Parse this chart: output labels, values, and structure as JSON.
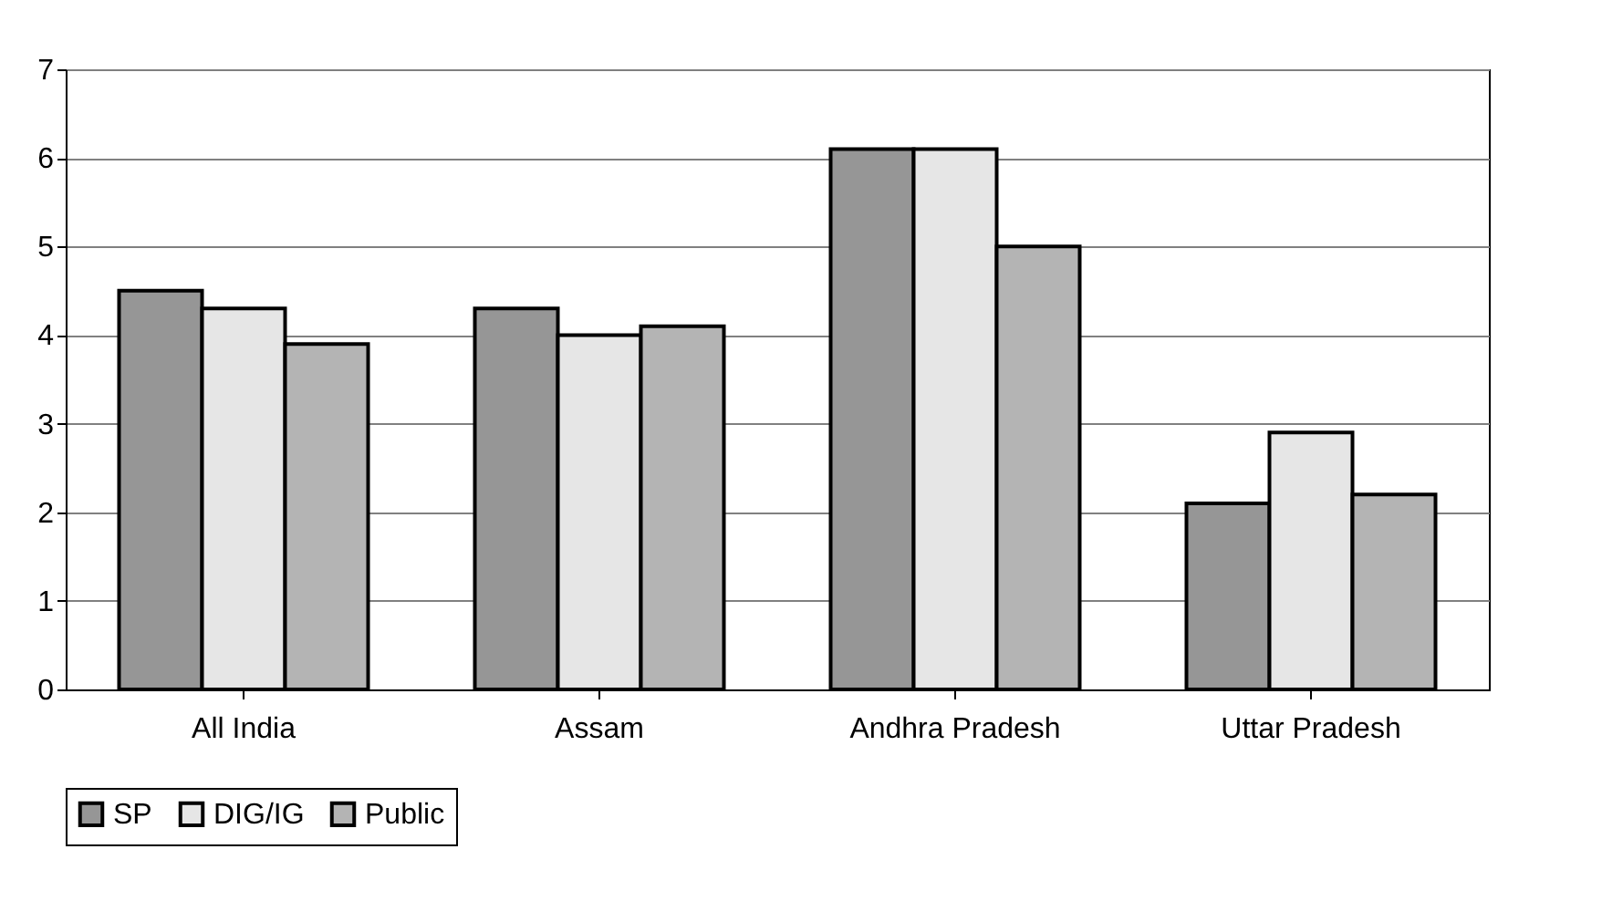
{
  "chart_data": {
    "type": "bar",
    "categories": [
      "All India",
      "Assam",
      "Andhra Pradesh",
      "Uttar Pradesh"
    ],
    "series": [
      {
        "name": "SP",
        "color": "#969696",
        "values": [
          4.5,
          4.3,
          6.1,
          2.1
        ]
      },
      {
        "name": "DIG/IG",
        "color": "#e6e6e6",
        "values": [
          4.3,
          4.0,
          6.1,
          2.9
        ]
      },
      {
        "name": "Public",
        "color": "#b4b4b4",
        "values": [
          3.9,
          4.1,
          5.0,
          2.2
        ]
      }
    ],
    "ylim": [
      0,
      7
    ],
    "yticks": [
      0,
      1,
      2,
      3,
      4,
      5,
      6,
      7
    ],
    "grid": "y",
    "legend": "bottom"
  }
}
